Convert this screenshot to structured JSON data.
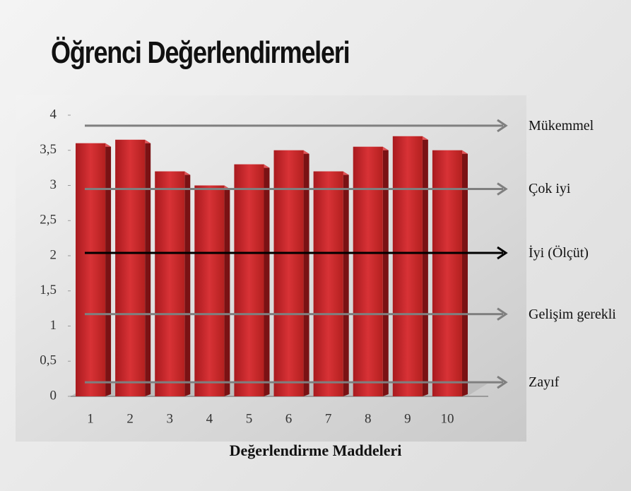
{
  "chart_data": {
    "type": "bar",
    "title": "Öğrenci Değerlendirmeleri",
    "x_label": "Değerlendirme Maddeleri",
    "categories": [
      "1",
      "2",
      "3",
      "4",
      "5",
      "6",
      "7",
      "8",
      "9",
      "10"
    ],
    "values": [
      3.6,
      3.65,
      3.2,
      3.0,
      3.3,
      3.5,
      3.2,
      3.55,
      3.7,
      3.5
    ],
    "color": "#c0282c",
    "ylim": [
      0,
      4
    ],
    "yticks": [
      0,
      {
        "value": 0.5,
        "label": "0,5"
      },
      1,
      {
        "value": 1.5,
        "label": "1,5"
      },
      2,
      {
        "value": 2.5,
        "label": "2,5"
      },
      3,
      {
        "value": 3.5,
        "label": "3,5"
      },
      4
    ],
    "grid": false,
    "reference_lines": [
      {
        "label": "Mükemmel",
        "value": 3.85,
        "color": "#7f7f7f"
      },
      {
        "label": "Çok iyi",
        "value": 2.95,
        "color": "#7f7f7f"
      },
      {
        "label": "İyi (Ölçüt)",
        "value": 2.04,
        "color": "#000000"
      },
      {
        "label": "Gelişim gerekli",
        "value": 1.17,
        "color": "#7f7f7f"
      },
      {
        "label": "Zayıf",
        "value": 0.2,
        "color": "#7f7f7f"
      }
    ]
  }
}
